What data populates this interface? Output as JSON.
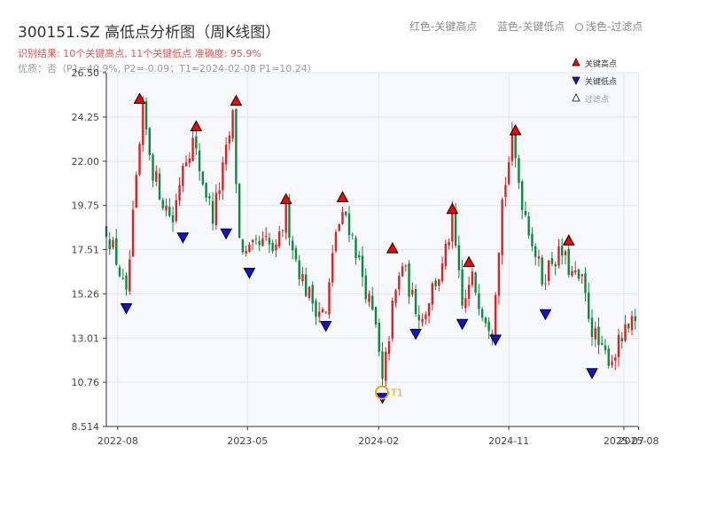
{
  "header": {
    "title": "300151.SZ 高低点分析图（周K线图）",
    "legend_red": "红色-关键高点",
    "legend_blue": "蓝色-关键低点",
    "legend_light": "浅色-过滤点",
    "result_line": "识别结果: 10个关键高点, 11个关键低点  准确度: 95.9%",
    "quality_line": "优质：否（P1=40.9%, P2=-0.09；T1=2024-02-08 P1=10.24）"
  },
  "colors": {
    "up": "#e02020",
    "down": "#0a8a3a",
    "high_marker": "#ff0000",
    "low_marker": "#1010e0",
    "t1": "#f0a020",
    "plot_bg": "#f7f8fb",
    "grid": "#e3e5ea"
  },
  "chart_data": {
    "type": "candlestick",
    "x_start": "2022-07-08",
    "x_end": "2025-07-31",
    "x_ticks": [
      "2022-08",
      "2023-05",
      "2024-02",
      "2024-11",
      "2025-07",
      "2025-08"
    ],
    "y_ticks": [
      "8.514",
      "10.76",
      "13.01",
      "15.26",
      "17.51",
      "19.75",
      "22.00",
      "24.25",
      "26.50"
    ],
    "ylim": [
      8.514,
      26.5
    ],
    "grid": true,
    "legend_position": "top-right",
    "legend": {
      "high": "关键高点",
      "low": "关键低点",
      "filtered": "过滤点"
    },
    "close_path": [
      [
        "2022-07-08",
        18.6
      ],
      [
        "2022-07-29",
        17.0
      ],
      [
        "2022-08-19",
        15.0
      ],
      [
        "2022-09-02",
        19.0
      ],
      [
        "2022-09-23",
        24.5
      ],
      [
        "2022-10-14",
        21.5
      ],
      [
        "2022-11-04",
        20.0
      ],
      [
        "2022-11-25",
        19.0
      ],
      [
        "2022-12-16",
        22.0
      ],
      [
        "2023-01-06",
        23.0
      ],
      [
        "2023-01-27",
        21.0
      ],
      [
        "2023-02-17",
        19.2
      ],
      [
        "2023-03-10",
        21.5
      ],
      [
        "2023-03-31",
        24.2
      ],
      [
        "2023-04-14",
        18.0
      ],
      [
        "2023-04-28",
        17.2
      ],
      [
        "2023-05-19",
        17.6
      ],
      [
        "2023-06-09",
        17.8
      ],
      [
        "2023-06-30",
        17.3
      ],
      [
        "2023-07-21",
        19.4
      ],
      [
        "2023-08-11",
        17.0
      ],
      [
        "2023-09-01",
        15.5
      ],
      [
        "2023-09-22",
        14.6
      ],
      [
        "2023-10-13",
        14.2
      ],
      [
        "2023-11-03",
        18.5
      ],
      [
        "2023-11-24",
        19.3
      ],
      [
        "2023-12-15",
        17.5
      ],
      [
        "2024-01-05",
        15.5
      ],
      [
        "2024-01-26",
        13.5
      ],
      [
        "2024-02-09",
        10.6
      ],
      [
        "2024-03-01",
        14.5
      ],
      [
        "2024-03-22",
        16.8
      ],
      [
        "2024-04-12",
        15.0
      ],
      [
        "2024-05-03",
        14.0
      ],
      [
        "2024-05-24",
        15.6
      ],
      [
        "2024-06-14",
        16.5
      ],
      [
        "2024-07-05",
        19.0
      ],
      [
        "2024-07-26",
        14.5
      ],
      [
        "2024-08-16",
        16.0
      ],
      [
        "2024-09-06",
        14.5
      ],
      [
        "2024-09-27",
        13.5
      ],
      [
        "2024-10-18",
        20.0
      ],
      [
        "2024-11-08",
        23.0
      ],
      [
        "2024-11-29",
        20.0
      ],
      [
        "2024-12-20",
        18.0
      ],
      [
        "2025-01-10",
        16.0
      ],
      [
        "2025-01-31",
        17.0
      ],
      [
        "2025-02-21",
        17.3
      ],
      [
        "2025-03-14",
        16.2
      ],
      [
        "2025-04-04",
        15.8
      ],
      [
        "2025-04-25",
        13.5
      ],
      [
        "2025-05-16",
        12.2
      ],
      [
        "2025-06-06",
        12.0
      ],
      [
        "2025-06-27",
        13.0
      ],
      [
        "2025-07-18",
        13.6
      ],
      [
        "2025-07-31",
        13.5
      ]
    ],
    "key_highs": [
      [
        "2022-09-16",
        24.9
      ],
      [
        "2023-01-13",
        23.5
      ],
      [
        "2023-04-07",
        24.8
      ],
      [
        "2023-07-21",
        19.8
      ],
      [
        "2023-11-17",
        19.9
      ],
      [
        "2024-03-01",
        17.3
      ],
      [
        "2024-07-05",
        19.3
      ],
      [
        "2024-08-09",
        16.6
      ],
      [
        "2024-11-15",
        23.3
      ],
      [
        "2025-03-07",
        17.7
      ]
    ],
    "key_lows": [
      [
        "2022-08-19",
        14.8
      ],
      [
        "2022-12-16",
        18.4
      ],
      [
        "2023-03-17",
        18.6
      ],
      [
        "2023-05-05",
        16.6
      ],
      [
        "2023-10-13",
        13.9
      ],
      [
        "2024-02-09",
        10.24
      ],
      [
        "2024-04-19",
        13.5
      ],
      [
        "2024-07-26",
        14.0
      ],
      [
        "2024-10-04",
        13.2
      ],
      [
        "2025-01-17",
        14.5
      ],
      [
        "2025-04-25",
        11.5
      ]
    ],
    "t1": {
      "label": "T1",
      "date": "2024-02-08",
      "value": 10.24
    }
  }
}
